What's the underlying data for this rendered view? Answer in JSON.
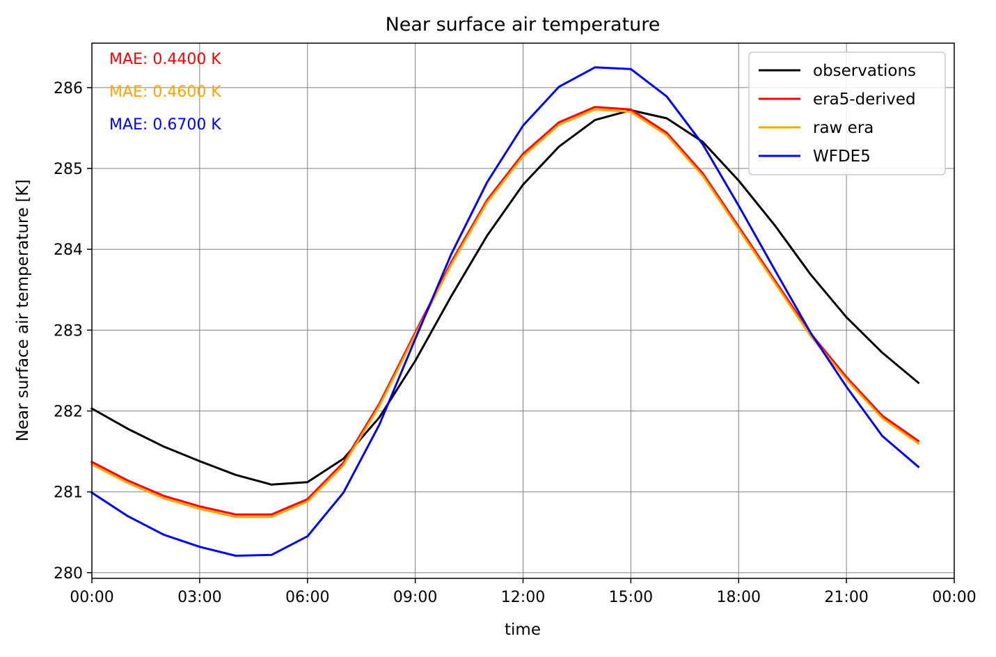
{
  "chart_data": {
    "type": "line",
    "title": "Near surface air temperature",
    "xlabel": "time",
    "ylabel": "Near surface air temperature [K]",
    "x_unit": "hour of day",
    "xlim": [
      0,
      24
    ],
    "ylim": [
      279.93,
      286.55
    ],
    "x_ticks": [
      {
        "v": 0,
        "label": "00:00"
      },
      {
        "v": 3,
        "label": "03:00"
      },
      {
        "v": 6,
        "label": "06:00"
      },
      {
        "v": 9,
        "label": "09:00"
      },
      {
        "v": 12,
        "label": "12:00"
      },
      {
        "v": 15,
        "label": "15:00"
      },
      {
        "v": 18,
        "label": "18:00"
      },
      {
        "v": 21,
        "label": "21:00"
      },
      {
        "v": 24,
        "label": "00:00"
      }
    ],
    "y_ticks": [
      {
        "v": 280,
        "label": "280"
      },
      {
        "v": 281,
        "label": "281"
      },
      {
        "v": 282,
        "label": "282"
      },
      {
        "v": 283,
        "label": "283"
      },
      {
        "v": 284,
        "label": "284"
      },
      {
        "v": 285,
        "label": "285"
      },
      {
        "v": 286,
        "label": "286"
      }
    ],
    "grid": true,
    "legend_position": "top-right",
    "x": [
      0,
      1,
      2,
      3,
      4,
      5,
      6,
      7,
      8,
      9,
      10,
      11,
      12,
      13,
      14,
      15,
      16,
      17,
      18,
      19,
      20,
      21,
      22,
      23
    ],
    "series": [
      {
        "name": "observations",
        "color": "#000000",
        "values": [
          282.03,
          281.78,
          281.56,
          281.38,
          281.21,
          281.09,
          281.12,
          281.41,
          281.92,
          282.62,
          283.42,
          284.17,
          284.8,
          285.27,
          285.6,
          285.72,
          285.62,
          285.33,
          284.85,
          284.3,
          283.69,
          283.16,
          282.72,
          282.35
        ]
      },
      {
        "name": "era5-derived",
        "color": "#ff0000",
        "values": [
          281.37,
          281.14,
          280.95,
          280.82,
          280.72,
          280.72,
          280.91,
          281.36,
          282.09,
          282.97,
          283.84,
          284.61,
          285.18,
          285.57,
          285.76,
          285.73,
          285.44,
          284.94,
          284.28,
          283.62,
          282.96,
          282.42,
          281.94,
          281.63
        ]
      },
      {
        "name": "raw era",
        "color": "#ffa500",
        "values": [
          281.34,
          281.11,
          280.92,
          280.79,
          280.69,
          280.69,
          280.88,
          281.33,
          282.06,
          282.94,
          283.81,
          284.58,
          285.15,
          285.54,
          285.73,
          285.7,
          285.41,
          284.91,
          284.25,
          283.59,
          282.93,
          282.39,
          281.91,
          281.6
        ]
      },
      {
        "name": "WFDE5",
        "color": "#0000ff",
        "values": [
          280.99,
          280.7,
          280.47,
          280.32,
          280.21,
          280.22,
          280.45,
          280.99,
          281.83,
          282.89,
          283.94,
          284.83,
          285.53,
          286.01,
          286.25,
          286.23,
          285.89,
          285.3,
          284.54,
          283.75,
          282.97,
          282.3,
          281.69,
          281.31
        ]
      }
    ],
    "annotations": [
      {
        "text": "MAE: 0.4400 K",
        "color": "#ff0000"
      },
      {
        "text": "MAE: 0.4600 K",
        "color": "#ffa500"
      },
      {
        "text": "MAE: 0.6700 K",
        "color": "#0000ff"
      }
    ]
  }
}
